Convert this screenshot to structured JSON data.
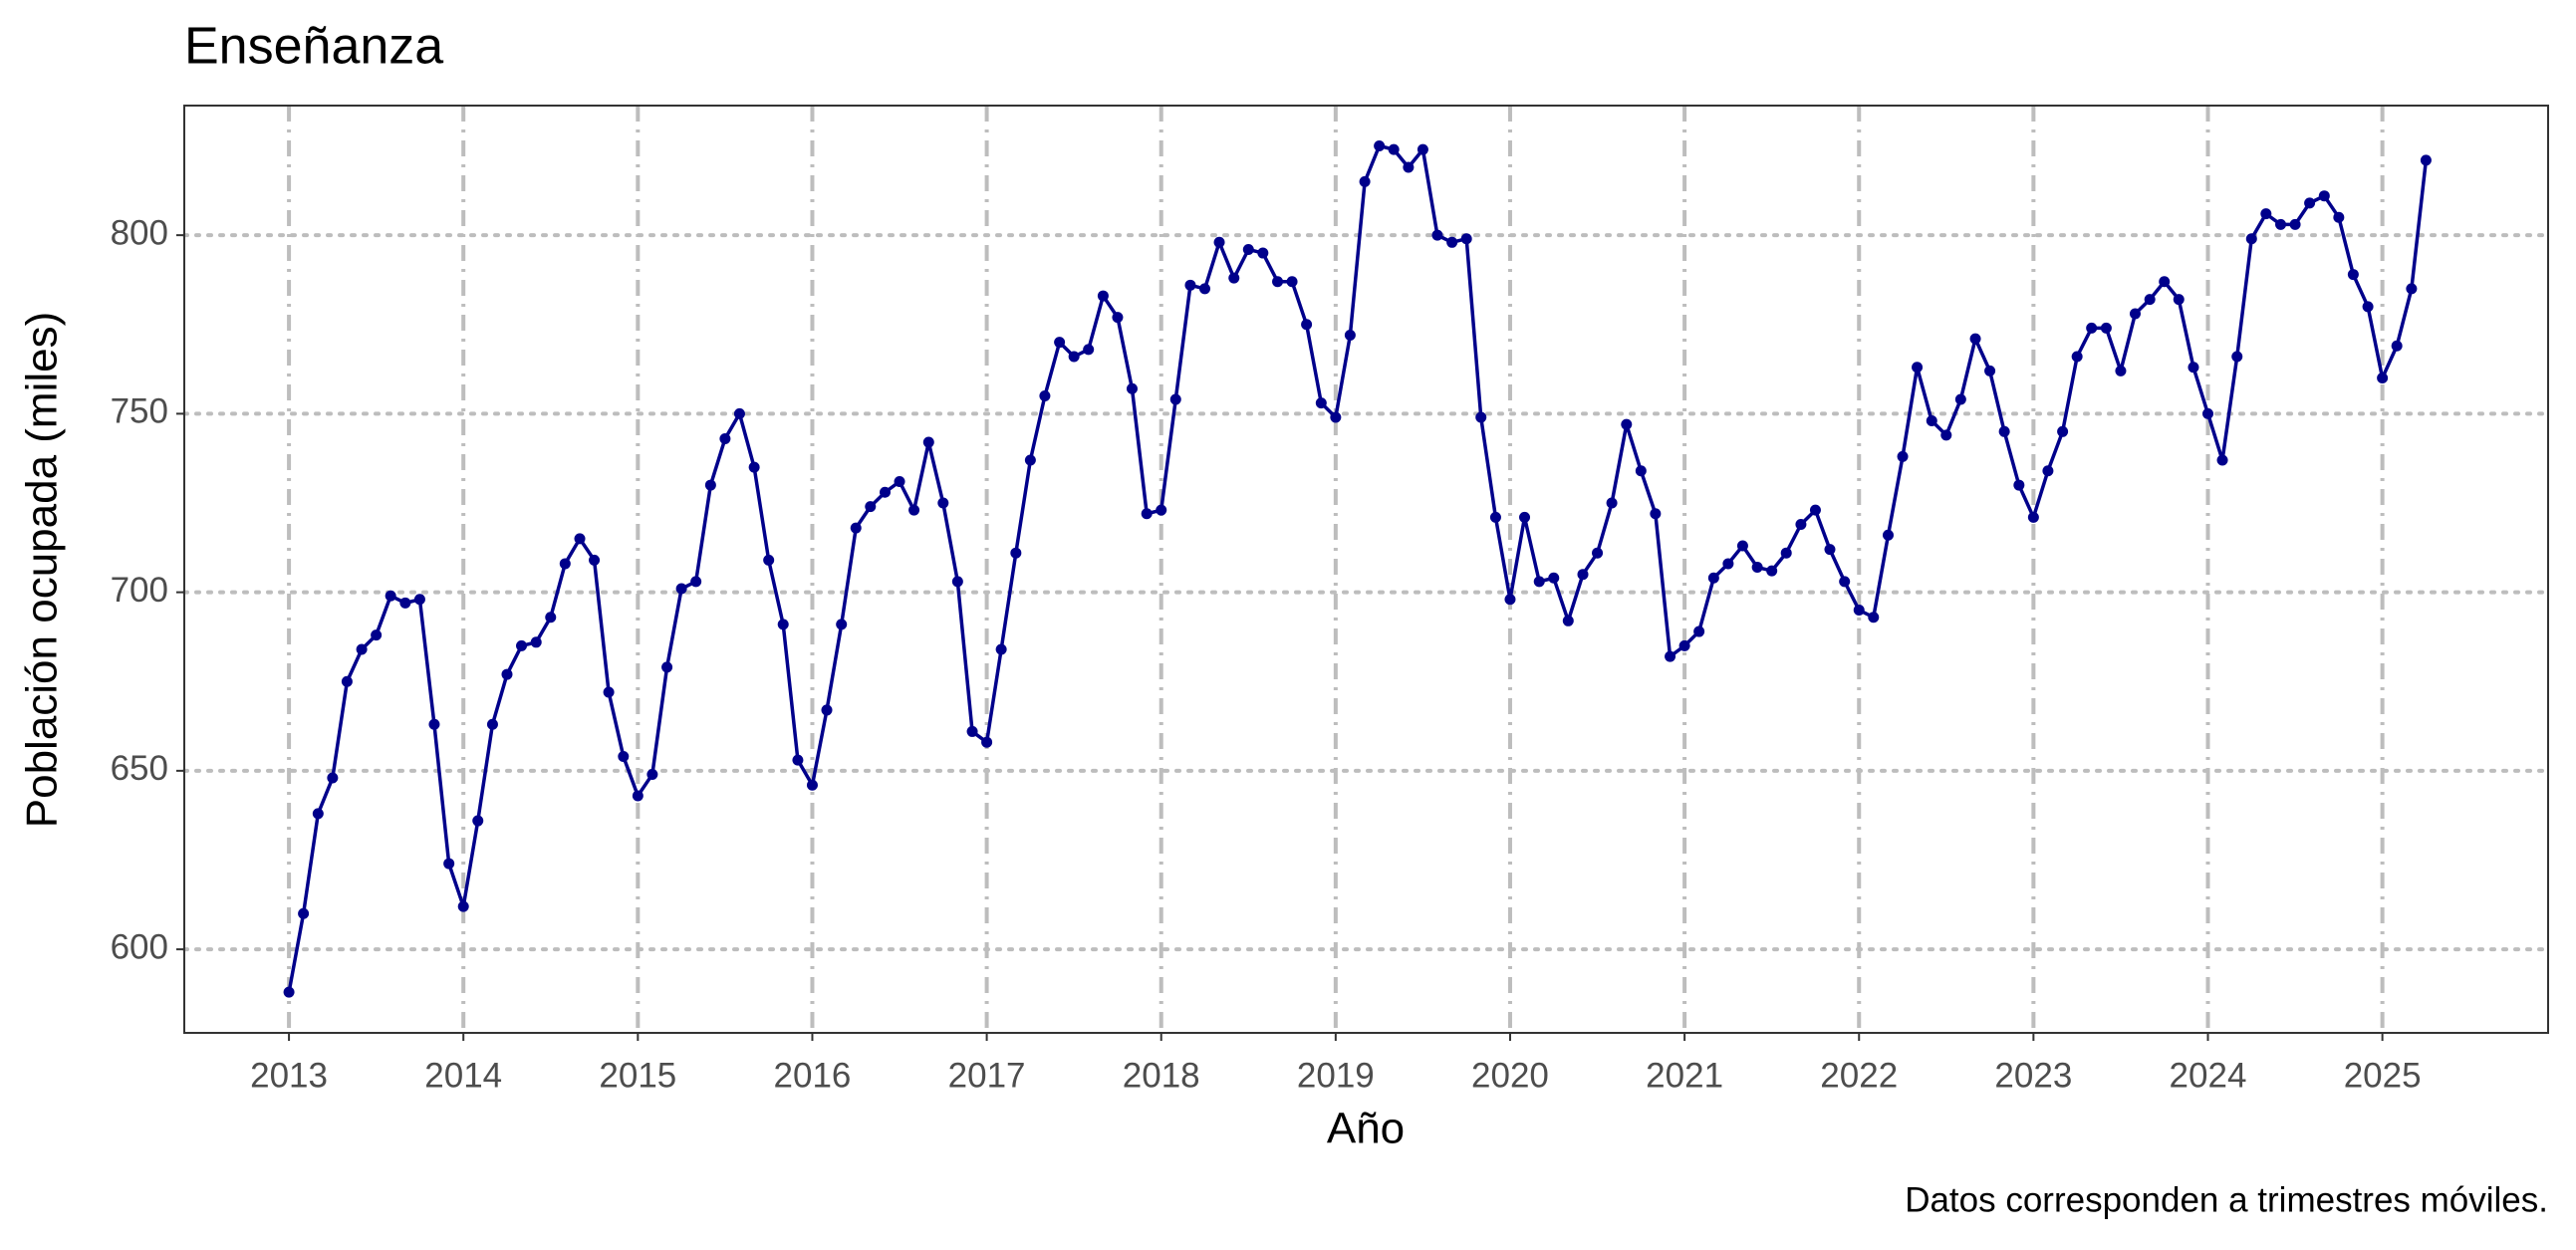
{
  "chart_data": {
    "type": "line",
    "title": "Enseñanza",
    "x_label": "Año",
    "y_label": "Población ocupada (miles)",
    "caption": "Datos corresponden a trimestres móviles.",
    "x": [
      2013,
      2013.083,
      2013.167,
      2013.25,
      2013.333,
      2013.417,
      2013.5,
      2013.583,
      2013.667,
      2013.75,
      2013.833,
      2013.917,
      2014,
      2014.083,
      2014.167,
      2014.25,
      2014.333,
      2014.417,
      2014.5,
      2014.583,
      2014.667,
      2014.75,
      2014.833,
      2014.917,
      2015,
      2015.083,
      2015.167,
      2015.25,
      2015.333,
      2015.417,
      2015.5,
      2015.583,
      2015.667,
      2015.75,
      2015.833,
      2015.917,
      2016,
      2016.083,
      2016.167,
      2016.25,
      2016.333,
      2016.417,
      2016.5,
      2016.583,
      2016.667,
      2016.75,
      2016.833,
      2016.917,
      2017,
      2017.083,
      2017.167,
      2017.25,
      2017.333,
      2017.417,
      2017.5,
      2017.583,
      2017.667,
      2017.75,
      2017.833,
      2017.917,
      2018,
      2018.083,
      2018.167,
      2018.25,
      2018.333,
      2018.417,
      2018.5,
      2018.583,
      2018.667,
      2018.75,
      2018.833,
      2018.917,
      2019,
      2019.083,
      2019.167,
      2019.25,
      2019.333,
      2019.417,
      2019.5,
      2019.583,
      2019.667,
      2019.75,
      2019.833,
      2019.917,
      2020,
      2020.083,
      2020.167,
      2020.25,
      2020.333,
      2020.417,
      2020.5,
      2020.583,
      2020.667,
      2020.75,
      2020.833,
      2020.917,
      2021,
      2021.083,
      2021.167,
      2021.25,
      2021.333,
      2021.417,
      2021.5,
      2021.583,
      2021.667,
      2021.75,
      2021.833,
      2021.917,
      2022,
      2022.083,
      2022.167,
      2022.25,
      2022.333,
      2022.417,
      2022.5,
      2022.583,
      2022.667,
      2022.75,
      2022.833,
      2022.917,
      2023,
      2023.083,
      2023.167,
      2023.25,
      2023.333,
      2023.417,
      2023.5,
      2023.583,
      2023.667,
      2023.75,
      2023.833,
      2023.917,
      2024,
      2024.083,
      2024.167,
      2024.25,
      2024.333,
      2024.417,
      2024.5,
      2024.583,
      2024.667,
      2024.75,
      2024.833,
      2024.917,
      2025,
      2025.083,
      2025.167,
      2025.25
    ],
    "series": [
      {
        "color": "#00008b",
        "values": [
          588,
          610,
          638,
          648,
          675,
          684,
          688,
          699,
          697,
          698,
          663,
          624,
          612,
          636,
          663,
          677,
          685,
          686,
          693,
          708,
          715,
          709,
          672,
          654,
          643,
          649,
          679,
          701,
          703,
          730,
          743,
          750,
          735,
          709,
          691,
          653,
          646,
          667,
          691,
          718,
          724,
          728,
          731,
          723,
          742,
          725,
          703,
          661,
          658,
          684,
          711,
          737,
          755,
          770,
          766,
          768,
          783,
          777,
          757,
          722,
          723,
          754,
          786,
          785,
          798,
          788,
          796,
          795,
          787,
          787,
          775,
          753,
          749,
          772,
          815,
          825,
          824,
          819,
          824,
          800,
          798,
          799,
          749,
          721,
          698,
          721,
          703,
          704,
          692,
          705,
          711,
          725,
          747,
          734,
          722,
          682,
          685,
          689,
          704,
          708,
          713,
          707,
          706,
          711,
          719,
          723,
          712,
          703,
          695,
          693,
          716,
          738,
          763,
          748,
          744,
          754,
          771,
          762,
          745,
          730,
          721,
          734,
          745,
          766,
          774,
          774,
          762,
          778,
          782,
          787,
          782,
          763,
          750,
          737,
          766,
          799,
          806,
          803,
          803,
          809,
          811,
          805,
          789,
          780,
          760,
          769,
          785,
          821
        ]
      }
    ],
    "xlim": [
      2012.4,
      2025.95
    ],
    "ylim": [
      576.6,
      836.3
    ],
    "xticks": [
      2013,
      2014,
      2015,
      2016,
      2017,
      2018,
      2019,
      2020,
      2021,
      2022,
      2023,
      2024,
      2025
    ],
    "yticks": [
      600,
      650,
      700,
      750,
      800
    ],
    "grid": true
  }
}
